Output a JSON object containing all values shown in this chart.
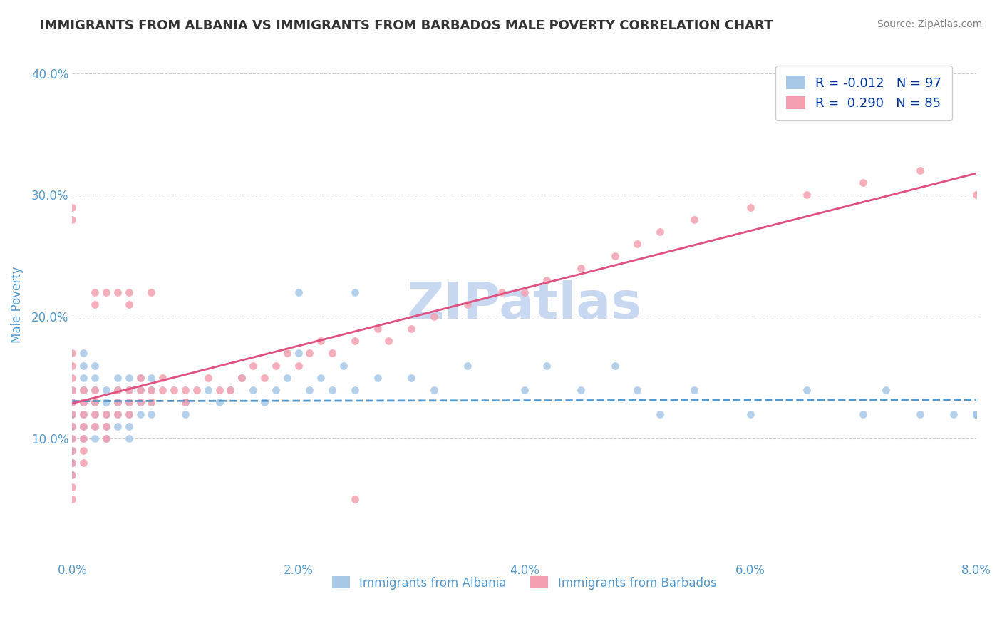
{
  "title": "IMMIGRANTS FROM ALBANIA VS IMMIGRANTS FROM BARBADOS MALE POVERTY CORRELATION CHART",
  "source": "Source: ZipAtlas.com",
  "xlabel_bottom": "Immigrants from Albania",
  "xlabel_bottom2": "Immigrants from Barbados",
  "ylabel": "Male Poverty",
  "xlim": [
    0.0,
    0.08
  ],
  "ylim": [
    0.0,
    0.42
  ],
  "xticks": [
    0.0,
    0.02,
    0.04,
    0.06,
    0.08
  ],
  "xtick_labels": [
    "0.0%",
    "2.0%",
    "4.0%",
    "6.0%",
    "8.0%"
  ],
  "yticks": [
    0.0,
    0.1,
    0.2,
    0.3,
    0.4
  ],
  "ytick_labels": [
    "",
    "10.0%",
    "20.0%",
    "30.0%",
    "40.0%"
  ],
  "albania_color": "#a8c8e8",
  "barbados_color": "#f4a0b0",
  "albania_line_color": "#5599cc",
  "barbados_line_color": "#e05080",
  "R_albania": -0.012,
  "N_albania": 97,
  "R_barbados": 0.29,
  "N_barbados": 85,
  "watermark": "ZIPatlas",
  "watermark_color": "#c8d8f0",
  "grid_color": "#cccccc",
  "title_color": "#333333",
  "axis_label_color": "#5599cc",
  "tick_label_color": "#5599cc",
  "legend_R_color": "#003399",
  "legend_N_color": "#0099cc",
  "albania_scatter_x": [
    0.0,
    0.0,
    0.0,
    0.0,
    0.0,
    0.0,
    0.0,
    0.0,
    0.0,
    0.0,
    0.0,
    0.001,
    0.001,
    0.001,
    0.001,
    0.001,
    0.001,
    0.001,
    0.001,
    0.002,
    0.002,
    0.002,
    0.002,
    0.002,
    0.002,
    0.002,
    0.003,
    0.003,
    0.003,
    0.003,
    0.003,
    0.004,
    0.004,
    0.004,
    0.004,
    0.004,
    0.005,
    0.005,
    0.005,
    0.005,
    0.005,
    0.005,
    0.006,
    0.006,
    0.006,
    0.006,
    0.007,
    0.007,
    0.007,
    0.007,
    0.01,
    0.01,
    0.012,
    0.013,
    0.014,
    0.015,
    0.016,
    0.017,
    0.018,
    0.019,
    0.02,
    0.02,
    0.021,
    0.022,
    0.023,
    0.024,
    0.025,
    0.025,
    0.027,
    0.03,
    0.032,
    0.035,
    0.04,
    0.042,
    0.045,
    0.048,
    0.05,
    0.052,
    0.055,
    0.06,
    0.065,
    0.07,
    0.072,
    0.075,
    0.078,
    0.08,
    0.08,
    0.08,
    0.08,
    0.08,
    0.08,
    0.08,
    0.08,
    0.08,
    0.08,
    0.08,
    0.08
  ],
  "albania_scatter_y": [
    0.12,
    0.13,
    0.08,
    0.09,
    0.1,
    0.11,
    0.12,
    0.14,
    0.07,
    0.08,
    0.09,
    0.1,
    0.11,
    0.12,
    0.13,
    0.14,
    0.15,
    0.16,
    0.17,
    0.1,
    0.11,
    0.12,
    0.13,
    0.14,
    0.15,
    0.16,
    0.1,
    0.11,
    0.12,
    0.13,
    0.14,
    0.11,
    0.12,
    0.13,
    0.14,
    0.15,
    0.1,
    0.11,
    0.12,
    0.13,
    0.14,
    0.15,
    0.12,
    0.13,
    0.14,
    0.15,
    0.12,
    0.13,
    0.14,
    0.15,
    0.12,
    0.13,
    0.14,
    0.13,
    0.14,
    0.15,
    0.14,
    0.13,
    0.14,
    0.15,
    0.17,
    0.22,
    0.14,
    0.15,
    0.14,
    0.16,
    0.14,
    0.22,
    0.15,
    0.15,
    0.14,
    0.16,
    0.14,
    0.16,
    0.14,
    0.16,
    0.14,
    0.12,
    0.14,
    0.12,
    0.14,
    0.12,
    0.14,
    0.12,
    0.12,
    0.12,
    0.12,
    0.12,
    0.12,
    0.12,
    0.12,
    0.12,
    0.12,
    0.12,
    0.12,
    0.12,
    0.12
  ],
  "barbados_scatter_x": [
    0.0,
    0.0,
    0.0,
    0.0,
    0.0,
    0.0,
    0.0,
    0.0,
    0.0,
    0.0,
    0.0,
    0.0,
    0.0,
    0.0,
    0.0,
    0.001,
    0.001,
    0.001,
    0.001,
    0.001,
    0.001,
    0.001,
    0.002,
    0.002,
    0.002,
    0.002,
    0.002,
    0.002,
    0.003,
    0.003,
    0.003,
    0.003,
    0.004,
    0.004,
    0.004,
    0.004,
    0.005,
    0.005,
    0.005,
    0.005,
    0.005,
    0.006,
    0.006,
    0.006,
    0.007,
    0.007,
    0.007,
    0.008,
    0.008,
    0.009,
    0.01,
    0.01,
    0.011,
    0.012,
    0.013,
    0.014,
    0.015,
    0.016,
    0.017,
    0.018,
    0.019,
    0.02,
    0.021,
    0.022,
    0.023,
    0.025,
    0.025,
    0.027,
    0.028,
    0.03,
    0.032,
    0.035,
    0.038,
    0.04,
    0.042,
    0.045,
    0.048,
    0.05,
    0.052,
    0.055,
    0.06,
    0.065,
    0.07,
    0.075,
    0.08
  ],
  "barbados_scatter_y": [
    0.05,
    0.06,
    0.07,
    0.08,
    0.09,
    0.1,
    0.11,
    0.12,
    0.13,
    0.14,
    0.15,
    0.16,
    0.17,
    0.28,
    0.29,
    0.08,
    0.09,
    0.1,
    0.11,
    0.12,
    0.13,
    0.14,
    0.11,
    0.12,
    0.13,
    0.14,
    0.21,
    0.22,
    0.1,
    0.11,
    0.12,
    0.22,
    0.12,
    0.13,
    0.14,
    0.22,
    0.12,
    0.13,
    0.14,
    0.21,
    0.22,
    0.13,
    0.14,
    0.15,
    0.13,
    0.14,
    0.22,
    0.14,
    0.15,
    0.14,
    0.13,
    0.14,
    0.14,
    0.15,
    0.14,
    0.14,
    0.15,
    0.16,
    0.15,
    0.16,
    0.17,
    0.16,
    0.17,
    0.18,
    0.17,
    0.18,
    0.05,
    0.19,
    0.18,
    0.19,
    0.2,
    0.21,
    0.22,
    0.22,
    0.23,
    0.24,
    0.25,
    0.26,
    0.27,
    0.28,
    0.29,
    0.3,
    0.31,
    0.32,
    0.3
  ]
}
